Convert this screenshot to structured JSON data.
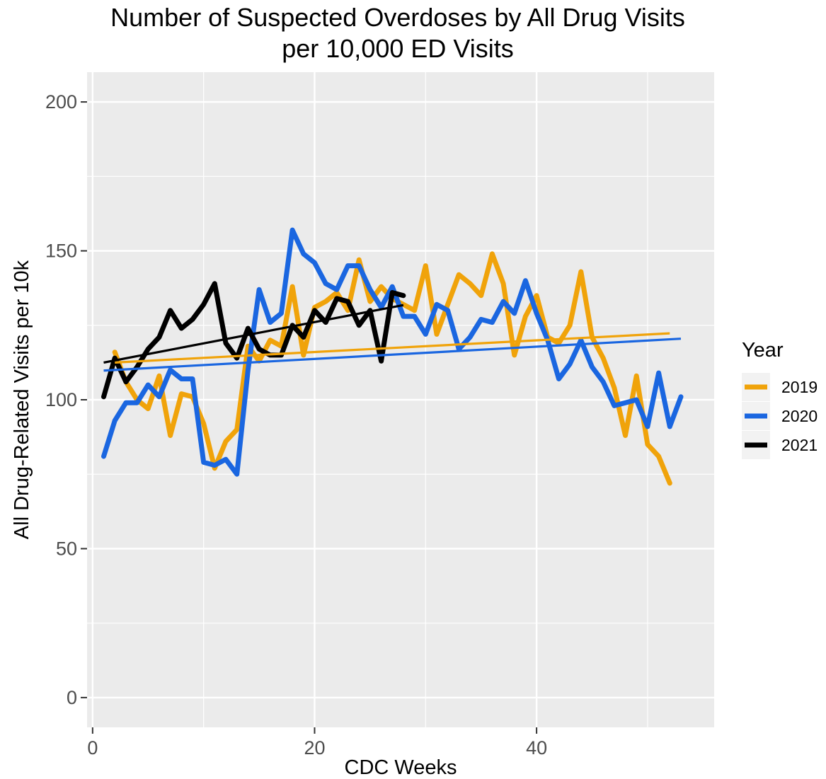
{
  "chart_data": {
    "type": "line",
    "title": "Number of Suspected Overdoses by All Drug Visits",
    "subtitle": "per 10,000 ED Visits",
    "xlabel": "CDC Weeks",
    "ylabel": "All Drug-Related Visits per 10k",
    "xlim": [
      -0.5,
      56
    ],
    "ylim": [
      -10,
      210
    ],
    "x_ticks": [
      0,
      20,
      40
    ],
    "y_ticks": [
      0,
      50,
      100,
      150,
      200
    ],
    "grid": true,
    "legend": {
      "title": "Year",
      "position": "right"
    },
    "series": [
      {
        "name": "2019",
        "color": "#F0A30A",
        "x": [
          2,
          3,
          4,
          5,
          6,
          7,
          8,
          9,
          10,
          11,
          12,
          13,
          14,
          15,
          16,
          17,
          18,
          19,
          20,
          21,
          22,
          23,
          24,
          25,
          26,
          27,
          28,
          29,
          30,
          31,
          32,
          33,
          34,
          35,
          36,
          37,
          38,
          39,
          40,
          41,
          42,
          43,
          44,
          45,
          46,
          47,
          48,
          49,
          50,
          51,
          52
        ],
        "values": [
          116,
          106,
          100,
          97,
          108,
          88,
          102,
          101,
          92,
          77,
          86,
          90,
          118,
          113,
          120,
          118,
          138,
          115,
          131,
          133,
          136,
          130,
          147,
          133,
          138,
          134,
          132,
          130,
          145,
          122,
          132,
          142,
          139,
          135,
          149,
          139,
          115,
          128,
          135,
          121,
          119,
          125,
          143,
          121,
          114,
          104,
          88,
          108,
          85,
          81,
          72
        ],
        "trend": [
          112.5,
          122.3
        ]
      },
      {
        "name": "2020",
        "color": "#1A66E0",
        "x": [
          1,
          2,
          3,
          4,
          5,
          6,
          7,
          8,
          9,
          10,
          11,
          12,
          13,
          14,
          15,
          16,
          17,
          18,
          19,
          20,
          21,
          22,
          23,
          24,
          25,
          26,
          27,
          28,
          29,
          30,
          31,
          32,
          33,
          34,
          35,
          36,
          37,
          38,
          39,
          40,
          41,
          42,
          43,
          44,
          45,
          46,
          47,
          48,
          49,
          50,
          51,
          52,
          53
        ],
        "values": [
          81,
          93,
          99,
          99,
          105,
          101,
          110,
          107,
          107,
          79,
          78,
          80,
          75,
          110,
          137,
          126,
          129,
          157,
          149,
          146,
          139,
          137,
          145,
          145,
          137,
          131,
          138,
          128,
          128,
          122,
          132,
          130,
          117,
          121,
          127,
          126,
          133,
          129,
          140,
          129,
          120,
          107,
          112,
          120,
          111,
          106,
          98,
          99,
          100,
          91,
          109,
          91,
          101
        ],
        "trend": [
          109.8,
          120.5
        ]
      },
      {
        "name": "2021",
        "color": "#000000",
        "x": [
          1,
          2,
          3,
          4,
          5,
          6,
          7,
          8,
          9,
          10,
          11,
          12,
          13,
          14,
          15,
          16,
          17,
          18,
          19,
          20,
          21,
          22,
          23,
          24,
          25,
          26,
          27,
          28
        ],
        "values": [
          101,
          114,
          106,
          111,
          117,
          121,
          130,
          124,
          127,
          132,
          139,
          119,
          114,
          124,
          117,
          115,
          115,
          125,
          121,
          130,
          126,
          134,
          133,
          125,
          130,
          113,
          136,
          135
        ],
        "trend": [
          112.5,
          131.8
        ]
      }
    ]
  }
}
